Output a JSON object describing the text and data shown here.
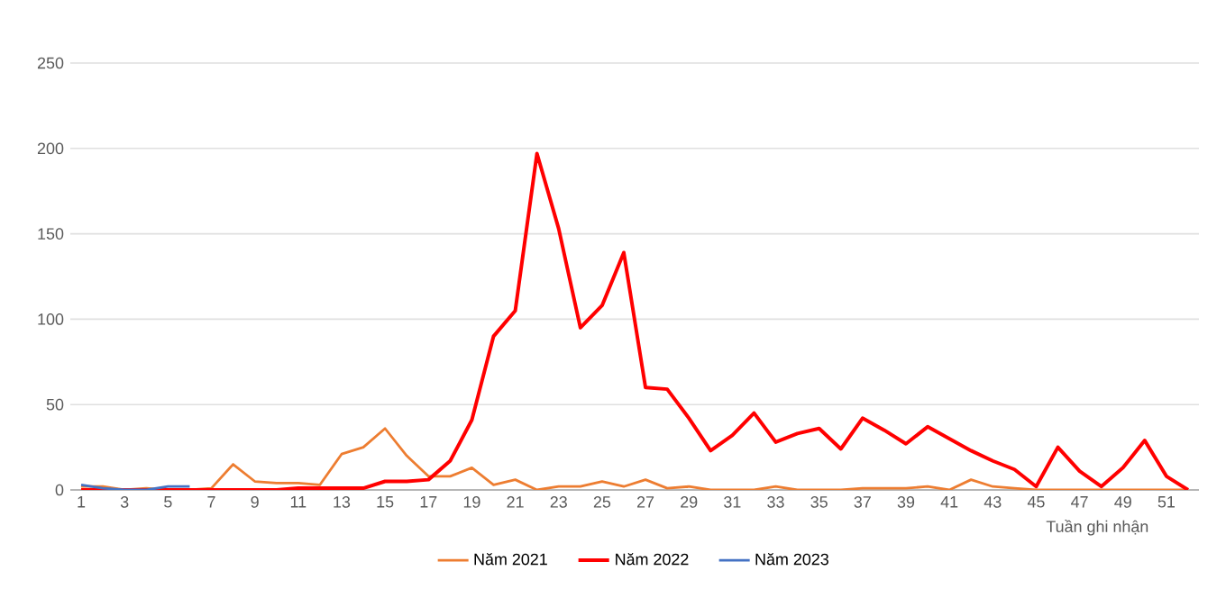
{
  "chart_data": {
    "type": "line",
    "xlabel": "Tuần ghi nhận",
    "categories": [
      "1",
      null,
      "3",
      null,
      "5",
      null,
      "7",
      null,
      "9",
      null,
      "11",
      null,
      "13",
      null,
      "15",
      null,
      "17",
      null,
      "19",
      null,
      "21",
      null,
      "23",
      null,
      "25",
      null,
      "27",
      null,
      "29",
      null,
      "31",
      null,
      "33",
      null,
      "35",
      null,
      "37",
      null,
      "39",
      null,
      "41",
      null,
      "43",
      null,
      "45",
      null,
      "47",
      null,
      "49",
      null,
      "51",
      null
    ],
    "series": [
      {
        "name": "Năm 2021",
        "color": "#ed7d31",
        "values": [
          2,
          2,
          0,
          1,
          0,
          0,
          1,
          15,
          5,
          4,
          4,
          3,
          21,
          25,
          36,
          20,
          8,
          8,
          13,
          3,
          6,
          0,
          2,
          2,
          5,
          2,
          6,
          1,
          2,
          0,
          0,
          0,
          2,
          0,
          0,
          0,
          1,
          1,
          1,
          2,
          0,
          6,
          2,
          1,
          0,
          0,
          0,
          0,
          0,
          0,
          0,
          0
        ]
      },
      {
        "name": "Năm 2022",
        "color": "#ff0000",
        "values": [
          0,
          0,
          0,
          0,
          0,
          0,
          0,
          0,
          0,
          0,
          1,
          1,
          1,
          1,
          5,
          5,
          6,
          17,
          41,
          90,
          105,
          197,
          153,
          95,
          108,
          139,
          60,
          59,
          42,
          23,
          32,
          45,
          28,
          33,
          36,
          24,
          42,
          35,
          27,
          37,
          30,
          23,
          17,
          12,
          2,
          25,
          11,
          2,
          13,
          29,
          8,
          0
        ]
      },
      {
        "name": "Năm 2023",
        "color": "#4472c4",
        "values": [
          3,
          1,
          0,
          0,
          2,
          2,
          null,
          null,
          null,
          null,
          null,
          null,
          null,
          null,
          null,
          null,
          null,
          null,
          null,
          null,
          null,
          null,
          null,
          null,
          null,
          null,
          null,
          null,
          null,
          null,
          null,
          null,
          null,
          null,
          null,
          null,
          null,
          null,
          null,
          null,
          null,
          null,
          null,
          null,
          null,
          null,
          null,
          null,
          null,
          null,
          null,
          null
        ]
      }
    ],
    "ylim": [
      0,
      250
    ],
    "yticks": [
      0,
      50,
      100,
      150,
      200,
      250
    ],
    "grid": "y",
    "legend": "bottom"
  }
}
